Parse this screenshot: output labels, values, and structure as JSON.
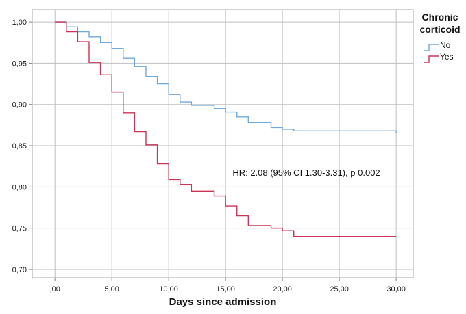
{
  "chart_data": {
    "type": "line",
    "xlabel": "Days since admission",
    "ylabel": "",
    "xlim": [
      -2,
      31.5
    ],
    "ylim": [
      0.69,
      1.015
    ],
    "x_ticks": [
      0,
      5,
      10,
      15,
      20,
      25,
      30
    ],
    "x_tick_labels": [
      ",00",
      "5,00",
      "10,00",
      "15,00",
      "20,00",
      "25,00",
      "30,00"
    ],
    "y_ticks": [
      0.7,
      0.75,
      0.8,
      0.85,
      0.9,
      0.95,
      1.0
    ],
    "y_tick_labels": [
      "0,70",
      "0,75",
      "0,80",
      "0,85",
      "0,90",
      "0,95",
      "1,00"
    ],
    "grid": true,
    "legend": {
      "title_line1": "Chronic",
      "title_line2": "corticoid",
      "placement": "right"
    },
    "annotation": "HR: 2.08 (95% CI 1.30-3.31), p 0.002",
    "series": [
      {
        "name": "No",
        "color": "#6fa8dc",
        "x": [
          0,
          1,
          2,
          3,
          4,
          5,
          6,
          7,
          8,
          9,
          10,
          11,
          12,
          14,
          15,
          16,
          17,
          19,
          20,
          21,
          30
        ],
        "y": [
          1.0,
          0.994,
          0.988,
          0.982,
          0.975,
          0.968,
          0.956,
          0.946,
          0.934,
          0.925,
          0.912,
          0.903,
          0.899,
          0.895,
          0.891,
          0.885,
          0.878,
          0.872,
          0.87,
          0.868,
          0.865
        ]
      },
      {
        "name": "Yes",
        "color": "#cc3355",
        "x": [
          0,
          1,
          2,
          3,
          4,
          5,
          6,
          7,
          8,
          9,
          10,
          11,
          12,
          14,
          15,
          16,
          17,
          19,
          20,
          21,
          30
        ],
        "y": [
          1.0,
          0.988,
          0.976,
          0.951,
          0.936,
          0.915,
          0.89,
          0.867,
          0.851,
          0.828,
          0.809,
          0.803,
          0.795,
          0.789,
          0.777,
          0.765,
          0.753,
          0.75,
          0.747,
          0.74,
          0.74
        ]
      }
    ]
  }
}
